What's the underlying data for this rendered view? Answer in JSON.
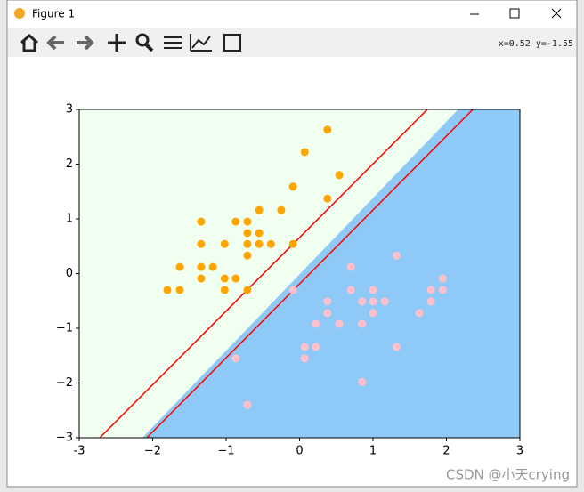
{
  "window": {
    "title": "Figure 1",
    "status": "x=0.52 y=-1.55"
  },
  "watermark": "CSDN @小天crying",
  "chart_data": {
    "type": "scatter",
    "xlim": [
      -3,
      3
    ],
    "ylim": [
      -3,
      3
    ],
    "xticks": [
      -3,
      {
        "value": -2,
        "label": "−2"
      },
      {
        "value": -1,
        "label": "−1"
      },
      0,
      1,
      2,
      3
    ],
    "yticks": [
      {
        "value": -3,
        "label": "−3"
      },
      {
        "value": -2,
        "label": "−2"
      },
      {
        "value": -1,
        "label": "−1"
      },
      0,
      1,
      2,
      3
    ],
    "regions": {
      "upper_color": "#f0fff0",
      "lower_color": "#8fc9f7",
      "boundary": {
        "x": [
          -2.14,
          2.16
        ],
        "y": [
          -3,
          3
        ]
      }
    },
    "lines": [
      {
        "color": "red",
        "x": [
          -2.72,
          1.74
        ],
        "y": [
          -3,
          3
        ]
      },
      {
        "color": "red",
        "x": [
          -2.08,
          2.36
        ],
        "y": [
          -3,
          3
        ]
      }
    ],
    "series": [
      {
        "color": "orange",
        "x": [
          -1.8,
          -1.63,
          -1.63,
          -1.34,
          -1.34,
          -1.34,
          -1.34,
          -1.18,
          -1.02,
          -1.02,
          -1.02,
          -0.87,
          -0.87,
          -0.71,
          -0.71,
          -0.71,
          -0.71,
          -0.71,
          -0.55,
          -0.55,
          -0.55,
          -0.39,
          -0.25,
          -0.09,
          -0.09,
          0.07,
          0.38,
          0.38,
          0.54
        ],
        "y": [
          -0.3,
          -0.3,
          0.12,
          0.95,
          0.54,
          0.12,
          -0.09,
          0.12,
          0.54,
          -0.09,
          -0.3,
          0.95,
          -0.09,
          0.95,
          0.74,
          0.54,
          0.33,
          -0.3,
          1.16,
          0.74,
          0.54,
          0.54,
          1.16,
          1.59,
          0.54,
          2.22,
          2.63,
          1.37,
          1.8
        ]
      },
      {
        "color": "pink",
        "x": [
          -0.09,
          0.07,
          0.07,
          0.22,
          0.22,
          0.38,
          0.38,
          0.54,
          0.7,
          0.7,
          0.85,
          0.85,
          0.85,
          1.0,
          1.0,
          1.0,
          1.16,
          1.32,
          1.32,
          1.63,
          1.79,
          1.79,
          1.95,
          1.95,
          -0.87,
          -0.71
        ],
        "y": [
          -0.3,
          -1.34,
          -1.55,
          -0.92,
          -1.34,
          -0.51,
          -0.72,
          -0.92,
          0.12,
          -0.3,
          -0.51,
          -0.92,
          -1.98,
          -0.3,
          -0.51,
          -0.72,
          -0.51,
          0.33,
          -1.34,
          -0.72,
          -0.3,
          -0.51,
          -0.09,
          -0.3,
          -1.55,
          -2.4
        ]
      }
    ]
  }
}
